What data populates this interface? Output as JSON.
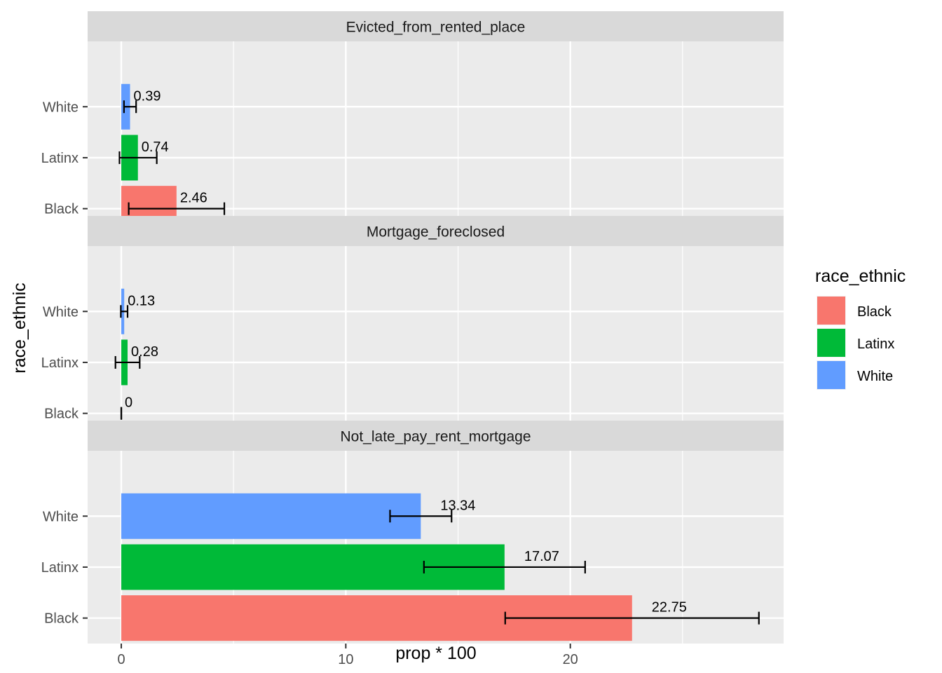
{
  "chart_data": {
    "type": "bar",
    "orientation": "horizontal",
    "faceted": true,
    "xlabel": "prop * 100",
    "ylabel": "race_ethnic",
    "xlim": [
      -1.5,
      29.5
    ],
    "x_ticks": [
      0,
      10,
      20
    ],
    "categories": [
      "White",
      "Latinx",
      "Black"
    ],
    "grid": true,
    "legend": {
      "title": "race_ethnic",
      "position": "right",
      "entries": [
        {
          "name": "Black",
          "color": "#F8766D"
        },
        {
          "name": "Latinx",
          "color": "#00BA38"
        },
        {
          "name": "White",
          "color": "#619CFF"
        }
      ]
    },
    "facets": [
      {
        "title": "Evicted_from_rented_place",
        "bars": [
          {
            "category": "White",
            "value": 0.39,
            "label": "0.39",
            "ci": [
              0.12,
              0.66
            ]
          },
          {
            "category": "Latinx",
            "value": 0.74,
            "label": "0.74",
            "ci": [
              -0.08,
              1.58
            ]
          },
          {
            "category": "Black",
            "value": 2.46,
            "label": "2.46",
            "ci": [
              0.33,
              4.59
            ]
          }
        ]
      },
      {
        "title": "Mortgage_foreclosed",
        "bars": [
          {
            "category": "White",
            "value": 0.13,
            "label": "0.13",
            "ci": [
              -0.02,
              0.28
            ]
          },
          {
            "category": "Latinx",
            "value": 0.28,
            "label": "0.28",
            "ci": [
              -0.26,
              0.82
            ]
          },
          {
            "category": "Black",
            "value": 0,
            "label": "0",
            "ci": [
              0,
              0
            ]
          }
        ]
      },
      {
        "title": "Not_late_pay_rent_mortgage",
        "bars": [
          {
            "category": "White",
            "value": 13.34,
            "label": "13.34",
            "ci": [
              11.97,
              14.71
            ]
          },
          {
            "category": "Latinx",
            "value": 17.07,
            "label": "17.07",
            "ci": [
              13.48,
              20.66
            ]
          },
          {
            "category": "Black",
            "value": 22.75,
            "label": "22.75",
            "ci": [
              17.1,
              28.4
            ]
          }
        ]
      }
    ]
  }
}
